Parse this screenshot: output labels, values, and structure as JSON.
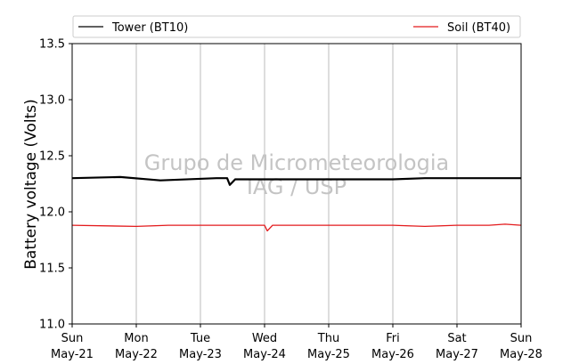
{
  "chart_data": {
    "type": "line",
    "ylabel": "Battery voltage (Volts)",
    "ylim": [
      11.0,
      13.5
    ],
    "yticks": [
      "11.0",
      "11.5",
      "12.0",
      "12.5",
      "13.0",
      "13.5"
    ],
    "xlim": [
      "2023-05-21",
      "2023-05-28"
    ],
    "xticks": [
      {
        "day": "Sun",
        "date": "May-21"
      },
      {
        "day": "Mon",
        "date": "May-22"
      },
      {
        "day": "Tue",
        "date": "May-23"
      },
      {
        "day": "Wed",
        "date": "May-24"
      },
      {
        "day": "Thu",
        "date": "May-25"
      },
      {
        "day": "Fri",
        "date": "May-26"
      },
      {
        "day": "Sat",
        "date": "May-27"
      },
      {
        "day": "Sun",
        "date": "May-28"
      }
    ],
    "grid": "vertical",
    "legend_position": "top",
    "watermark": [
      "Grupo de Micrometeorologia",
      "IAG / USP"
    ],
    "series": [
      {
        "name": "Tower (BT10)",
        "color": "#000000",
        "x": [
          "May-21 00:00",
          "May-21 18:00",
          "May-22 09:00",
          "May-23 06:00",
          "May-23 10:00",
          "May-23 11:00",
          "May-23 13:00",
          "May-24 12:00",
          "May-25 00:00",
          "May-25 12:00",
          "May-26 00:00",
          "May-26 12:00",
          "May-27 00:00",
          "May-27 12:00",
          "May-28 00:00"
        ],
        "values": [
          12.3,
          12.31,
          12.28,
          12.3,
          12.3,
          12.24,
          12.29,
          12.29,
          12.29,
          12.29,
          12.29,
          12.3,
          12.3,
          12.3,
          12.3
        ]
      },
      {
        "name": "Soil (BT40)",
        "color": "#e31a1c",
        "x": [
          "May-21 00:00",
          "May-22 00:00",
          "May-22 12:00",
          "May-23 00:00",
          "May-24 00:00",
          "May-24 01:00",
          "May-24 03:00",
          "May-25 00:00",
          "May-26 00:00",
          "May-26 12:00",
          "May-27 00:00",
          "May-27 12:00",
          "May-27 18:00",
          "May-28 00:00"
        ],
        "values": [
          11.88,
          11.87,
          11.88,
          11.88,
          11.88,
          11.83,
          11.88,
          11.88,
          11.88,
          11.87,
          11.88,
          11.88,
          11.89,
          11.88
        ]
      }
    ]
  }
}
